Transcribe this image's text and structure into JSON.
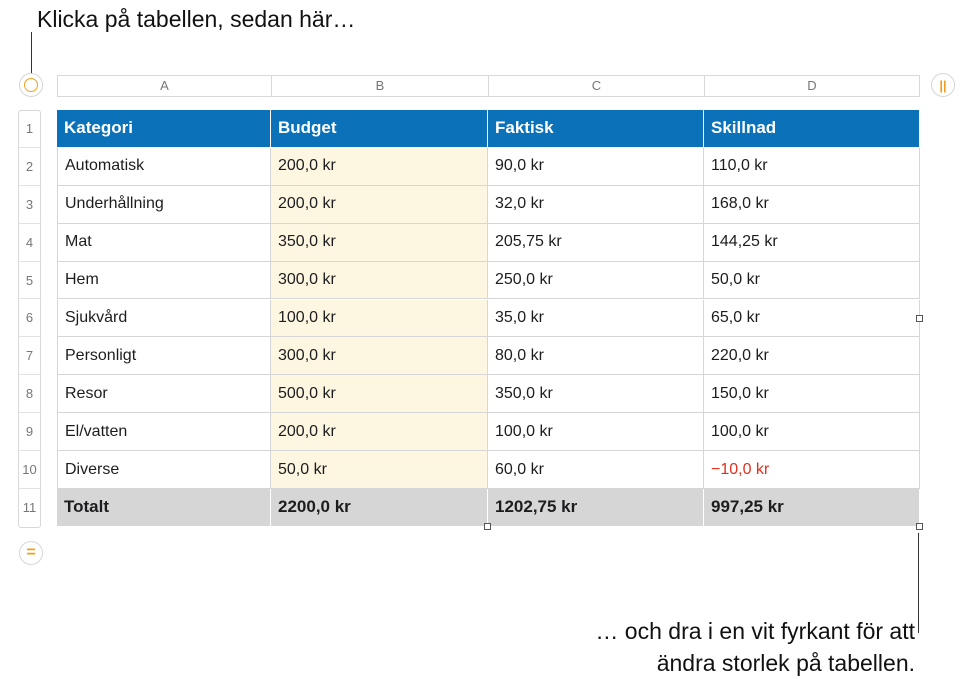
{
  "callout_top": "Klicka på tabellen, sedan här…",
  "callout_bottom": [
    "… och dra i en vit fyrkant för att",
    "ändra storlek på tabellen."
  ],
  "table": {
    "columns": [
      "A",
      "B",
      "C",
      "D"
    ],
    "row_numbers": [
      "1",
      "2",
      "3",
      "4",
      "5",
      "6",
      "7",
      "8",
      "9",
      "10",
      "11"
    ],
    "rows": [
      [
        "Kategori",
        "Budget",
        "Faktisk",
        "Skillnad"
      ],
      [
        "Automatisk",
        "200,0 kr",
        "90,0 kr",
        "110,0 kr"
      ],
      [
        "Underhållning",
        "200,0 kr",
        "32,0 kr",
        "168,0 kr"
      ],
      [
        "Mat",
        "350,0 kr",
        "205,75 kr",
        "144,25 kr"
      ],
      [
        "Hem",
        "300,0 kr",
        "250,0 kr",
        "50,0 kr"
      ],
      [
        "Sjukvård",
        "100,0 kr",
        "35,0 kr",
        "65,0 kr"
      ],
      [
        "Personligt",
        "300,0 kr",
        "80,0 kr",
        "220,0 kr"
      ],
      [
        "Resor",
        "500,0 kr",
        "350,0 kr",
        "150,0 kr"
      ],
      [
        "El/vatten",
        "200,0 kr",
        "100,0 kr",
        "100,0 kr"
      ],
      [
        "Diverse",
        "50,0 kr",
        "60,0 kr",
        "−10,0 kr"
      ],
      [
        "Totalt",
        "2200,0 kr",
        "1202,75 kr",
        "997,25 kr"
      ]
    ]
  }
}
